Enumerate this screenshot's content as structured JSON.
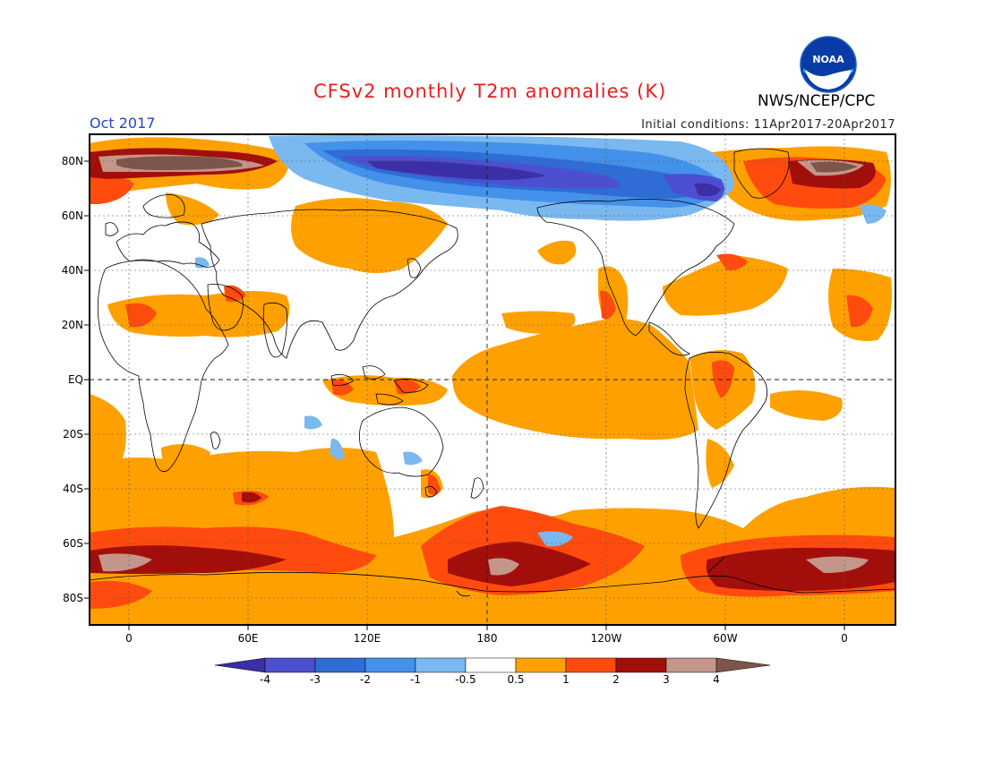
{
  "header": {
    "title": "CFSv2 monthly T2m anomalies (K)",
    "agency": "NWS/NCEP/CPC",
    "month": "Oct 2017",
    "initial_conditions": "Initial conditions: 11Apr2017-20Apr2017",
    "logo_text": "NOAA"
  },
  "map": {
    "lat_labels": [
      "80N",
      "60N",
      "40N",
      "20N",
      "EQ",
      "20S",
      "40S",
      "60S",
      "80S"
    ],
    "lon_labels": [
      "0",
      "60E",
      "120E",
      "180",
      "120W",
      "60W",
      "0"
    ],
    "grid": "dotted"
  },
  "colorbar": {
    "labels": [
      "-4",
      "-3",
      "-2",
      "-1",
      "-0.5",
      "0.5",
      "1",
      "2",
      "3",
      "4"
    ],
    "colors": [
      "#3b2fa5",
      "#4c4fd0",
      "#2f6cd6",
      "#4391ea",
      "#7ab8f0",
      "#ffffff",
      "#fea100",
      "#ff4b0e",
      "#a20f0b",
      "#c4968a",
      "#7d554a"
    ]
  }
}
